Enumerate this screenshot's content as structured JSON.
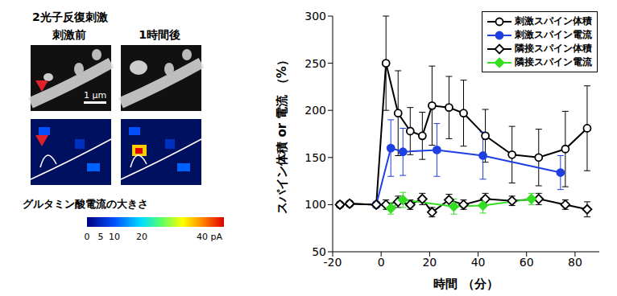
{
  "panels": {
    "title": "2光子反復刺激",
    "before_label": "刺激前",
    "after_label": "1時間後",
    "scale_bar": "1 μm",
    "colorbar": {
      "label": "グルタミン酸電流の大きさ",
      "range": [
        0,
        50
      ],
      "ticks": [
        0,
        5,
        10,
        20,
        {
          "value": 40,
          "label": "40 pA"
        }
      ]
    }
  },
  "chart_data": {
    "type": "line",
    "x_label": "時間 （分）",
    "y_label": "スパイン体積 or 電流 （%）",
    "xlim": [
      -20,
      90
    ],
    "xticks": [
      -20,
      0,
      20,
      40,
      60,
      80
    ],
    "ylim": [
      50,
      300
    ],
    "yticks": [
      50,
      100,
      150,
      200,
      250,
      300
    ],
    "legend": "upper right",
    "series": [
      {
        "name": "刺激スパイン体積",
        "color": "#000000",
        "marker": "open_circle",
        "x": [
          -17,
          -13,
          -2,
          2,
          7,
          12,
          17,
          21,
          28,
          34,
          43,
          54,
          65,
          76,
          85
        ],
        "values": [
          100,
          101,
          100,
          250,
          197,
          178,
          173,
          205,
          203,
          197,
          173,
          153,
          150,
          159,
          181
        ],
        "errors": [
          0,
          0,
          0,
          50,
          45,
          25,
          25,
          42,
          33,
          35,
          28,
          30,
          30,
          40,
          45
        ]
      },
      {
        "name": "刺激スパイン電流",
        "color": "#1f3fe0",
        "marker": "filled_circle",
        "x": [
          -2,
          4,
          9,
          23,
          42,
          74
        ],
        "values": [
          100,
          160,
          156,
          158,
          152,
          134
        ],
        "errors": [
          0,
          30,
          25,
          28,
          25,
          18
        ]
      },
      {
        "name": "隣接スパイン体積",
        "color": "#000000",
        "marker": "open_diamond",
        "x": [
          -17,
          -13,
          -2,
          2,
          7,
          12,
          17,
          21,
          28,
          34,
          43,
          54,
          65,
          76,
          85
        ],
        "values": [
          100,
          101,
          100,
          100,
          103,
          100,
          106,
          92,
          105,
          100,
          106,
          104,
          106,
          100,
          95
        ],
        "errors": [
          0,
          0,
          0,
          5,
          6,
          5,
          6,
          5,
          6,
          5,
          6,
          5,
          6,
          5,
          8
        ]
      },
      {
        "name": "隣接スパイン電流",
        "color": "#33dd22",
        "marker": "filled_diamond",
        "x": [
          4,
          9,
          30,
          42,
          62
        ],
        "values": [
          96,
          105,
          98,
          99,
          106
        ],
        "errors": [
          6,
          8,
          8,
          8,
          6
        ]
      }
    ]
  }
}
